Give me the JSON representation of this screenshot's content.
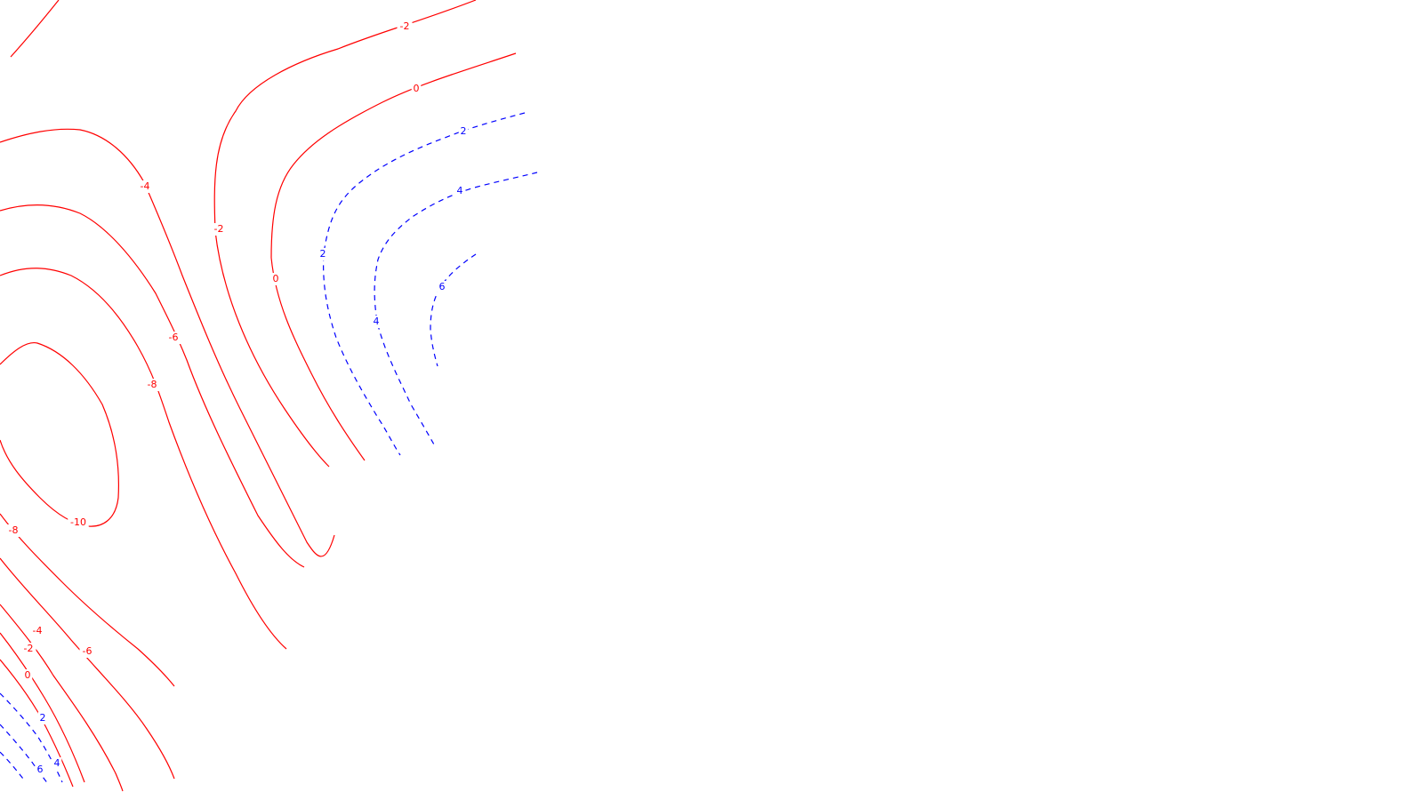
{
  "chart_data": {
    "type": "contour",
    "title": "",
    "xlabel": "",
    "ylabel": "",
    "grid": false,
    "legend": "none",
    "colors": {
      "negative_and_zero": "#ff0000",
      "positive": "#0000ff",
      "background": "#ffffff"
    },
    "line_styles": {
      "negative_and_zero": "solid",
      "positive": "dashed"
    },
    "levels": [
      -10,
      -8,
      -6,
      -4,
      -2,
      0,
      2,
      4,
      6
    ],
    "contour_labels": [
      {
        "level": -2,
        "text": "-2"
      },
      {
        "level": 0,
        "text": "0"
      },
      {
        "level": 2,
        "text": "2"
      },
      {
        "level": 4,
        "text": "4"
      },
      {
        "level": -4,
        "text": "-4"
      },
      {
        "level": -2,
        "text": "-2"
      },
      {
        "level": 0,
        "text": "0"
      },
      {
        "level": 2,
        "text": "2"
      },
      {
        "level": 6,
        "text": "6"
      },
      {
        "level": 4,
        "text": "4"
      },
      {
        "level": -6,
        "text": "-6"
      },
      {
        "level": -8,
        "text": "-8"
      },
      {
        "level": -10,
        "text": "-10"
      },
      {
        "level": -8,
        "text": "-8"
      },
      {
        "level": -4,
        "text": "-4"
      },
      {
        "level": -2,
        "text": "-2"
      },
      {
        "level": -6,
        "text": "-6"
      },
      {
        "level": 0,
        "text": "0"
      },
      {
        "level": 2,
        "text": "2"
      },
      {
        "level": 4,
        "text": "4"
      },
      {
        "level": 6,
        "text": "6"
      }
    ]
  }
}
